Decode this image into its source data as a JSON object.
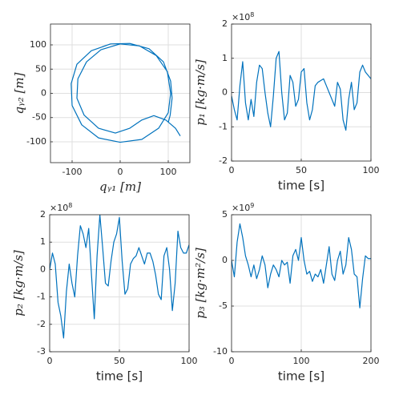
{
  "chart_data": [
    {
      "type": "line",
      "xlabel": "qᵧ₁ [m]",
      "ylabel": "qᵧ₂ [m]",
      "grid": true,
      "xlim": [
        -145,
        145
      ],
      "ylim": [
        -143,
        143
      ],
      "xticks": [
        -100,
        0,
        100
      ],
      "yticks": [
        -100,
        -50,
        0,
        50,
        100
      ],
      "series": [
        {
          "color": "#0072bd",
          "x": [
            125,
            115,
            95,
            70,
            45,
            20,
            -10,
            -45,
            -75,
            -90,
            -88,
            -70,
            -40,
            0,
            40,
            75,
            98,
            105,
            100,
            80,
            45,
            0,
            -45,
            -80,
            -100,
            -102,
            -90,
            -60,
            -20,
            20,
            60,
            90,
            105,
            108,
            104,
            100
          ],
          "values": [
            -88,
            -72,
            -55,
            -46,
            -55,
            -72,
            -82,
            -72,
            -45,
            -10,
            30,
            65,
            90,
            102,
            98,
            78,
            45,
            0,
            -40,
            -72,
            -95,
            -101,
            -92,
            -65,
            -25,
            20,
            60,
            88,
            102,
            103,
            92,
            65,
            25,
            -10,
            -45,
            -60
          ]
        }
      ]
    },
    {
      "type": "line",
      "xlabel": "time [s]",
      "ylabel": "p₁ [kg·m/s]",
      "grid": true,
      "yscale": {
        "base": "×10",
        "power": 8
      },
      "xlim": [
        0,
        100
      ],
      "ylim": [
        -2,
        2
      ],
      "xticks": [
        0,
        50,
        100
      ],
      "yticks": [
        -2,
        -1,
        0,
        1,
        2
      ],
      "series": [
        {
          "color": "#0072bd",
          "x": [
            0,
            2,
            4,
            6,
            8,
            10,
            12,
            14,
            16,
            18,
            20,
            22,
            24,
            26,
            28,
            30,
            32,
            34,
            36,
            38,
            40,
            42,
            44,
            46,
            48,
            50,
            52,
            54,
            56,
            58,
            60,
            62,
            64,
            66,
            68,
            70,
            72,
            74,
            76,
            78,
            80,
            82,
            84,
            86,
            88,
            90,
            92,
            94,
            96,
            98,
            100
          ],
          "values": [
            -0.1,
            -0.5,
            -0.8,
            0.2,
            0.9,
            -0.3,
            -0.8,
            -0.2,
            -0.7,
            0.3,
            0.8,
            0.7,
            0.0,
            -0.6,
            -1.0,
            -0.1,
            1.0,
            1.2,
            0.0,
            -0.8,
            -0.6,
            0.5,
            0.3,
            -0.4,
            -0.2,
            0.6,
            0.7,
            -0.3,
            -0.8,
            -0.5,
            0.2,
            0.3,
            0.35,
            0.4,
            0.2,
            0.0,
            -0.2,
            -0.4,
            0.3,
            0.1,
            -0.8,
            -1.1,
            -0.2,
            0.3,
            -0.5,
            -0.3,
            0.6,
            0.8,
            0.6,
            0.5,
            0.4
          ]
        }
      ]
    },
    {
      "type": "line",
      "xlabel": "time [s]",
      "ylabel": "p₂ [kg·m/s]",
      "grid": true,
      "yscale": {
        "base": "×10",
        "power": 8
      },
      "xlim": [
        0,
        100
      ],
      "ylim": [
        -3,
        2
      ],
      "xticks": [
        0,
        50,
        100
      ],
      "yticks": [
        -3,
        -2,
        -1,
        0,
        1,
        2
      ],
      "series": [
        {
          "color": "#0072bd",
          "x": [
            0,
            2,
            4,
            6,
            8,
            10,
            12,
            14,
            16,
            18,
            20,
            22,
            24,
            26,
            28,
            30,
            32,
            34,
            36,
            38,
            40,
            42,
            44,
            46,
            48,
            50,
            52,
            54,
            56,
            58,
            60,
            62,
            64,
            66,
            68,
            70,
            72,
            74,
            76,
            78,
            80,
            82,
            84,
            86,
            88,
            90,
            92,
            94,
            96,
            98,
            100
          ],
          "values": [
            0,
            0.6,
            0.2,
            -1.2,
            -1.7,
            -2.5,
            -0.8,
            0.2,
            -0.5,
            -1.0,
            0.5,
            1.6,
            1.3,
            0.8,
            1.5,
            -0.2,
            -1.8,
            0.5,
            2.0,
            0.8,
            -0.5,
            -0.6,
            0.3,
            1.0,
            1.3,
            1.9,
            0.3,
            -0.9,
            -0.7,
            0.2,
            0.4,
            0.5,
            0.8,
            0.5,
            0.2,
            0.6,
            0.6,
            0.3,
            -0.2,
            -0.9,
            -1.1,
            0.5,
            0.8,
            0.0,
            -1.5,
            -0.5,
            1.4,
            0.8,
            0.6,
            0.6,
            0.9
          ]
        }
      ]
    },
    {
      "type": "line",
      "xlabel": "time [s]",
      "ylabel": "p₃ [kg·m²/s]",
      "grid": true,
      "yscale": {
        "base": "×10",
        "power": 9
      },
      "xlim": [
        0,
        200
      ],
      "ylim": [
        -10,
        5
      ],
      "xticks": [
        0,
        100,
        200
      ],
      "yticks": [
        -10,
        -5,
        0,
        5
      ],
      "series": [
        {
          "color": "#0072bd",
          "x": [
            0,
            4,
            8,
            12,
            16,
            20,
            24,
            28,
            32,
            36,
            40,
            44,
            48,
            52,
            56,
            60,
            64,
            68,
            72,
            76,
            80,
            84,
            88,
            92,
            96,
            100,
            104,
            108,
            112,
            116,
            120,
            124,
            128,
            132,
            136,
            140,
            144,
            148,
            152,
            156,
            160,
            164,
            168,
            172,
            176,
            180,
            184,
            188,
            192,
            196,
            200
          ],
          "values": [
            0,
            -1.8,
            2,
            4,
            2.5,
            0.5,
            -0.5,
            -1.8,
            -0.5,
            -2,
            -1,
            0.5,
            -0.5,
            -3,
            -1.5,
            -0.5,
            -1,
            -1.8,
            0,
            -0.5,
            -0.2,
            -2.5,
            0.5,
            1.2,
            0,
            2.5,
            0,
            -1.5,
            -1.2,
            -2.3,
            -1.5,
            -1.8,
            -1,
            -2.5,
            -0.5,
            1.5,
            -1.5,
            -2.2,
            0,
            1,
            -1.5,
            -0.5,
            2.5,
            1.2,
            -1.5,
            -1.8,
            -5.2,
            -2,
            0.5,
            0.2,
            0.2
          ]
        }
      ]
    }
  ]
}
